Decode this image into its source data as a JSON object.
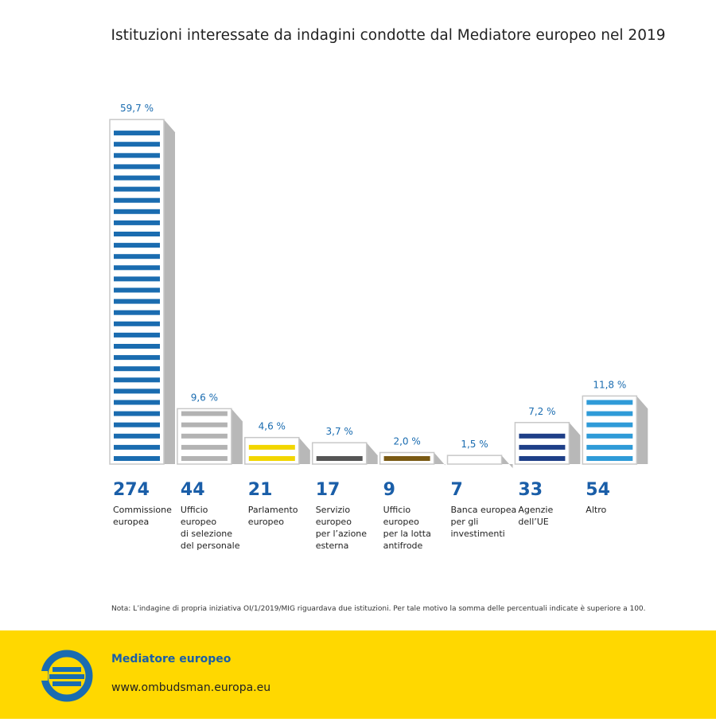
{
  "chart_data": {
    "type": "bar",
    "title": "Istituzioni interessate da indagini condotte dal Mediatore europeo nel 2019",
    "categories": [
      [
        "Commissione",
        "europea"
      ],
      [
        "Ufficio",
        "europeo",
        "di selezione",
        "del personale"
      ],
      [
        "Parlamento",
        "europeo"
      ],
      [
        "Servizio",
        "europeo",
        "per l’azione",
        "esterna"
      ],
      [
        "Ufficio",
        "europeo",
        "per la lotta",
        "antifrode"
      ],
      [
        "Banca europea",
        "per gli",
        "investimenti"
      ],
      [
        "Agenzie",
        "dell’UE"
      ],
      [
        "Altro"
      ]
    ],
    "values": [
      59.7,
      9.6,
      4.6,
      3.7,
      2.0,
      1.5,
      7.2,
      11.8
    ],
    "value_labels": [
      "59,7 %",
      "9,6 %",
      "4,6 %",
      "3,7 %",
      "2,0 %",
      "1,5 %",
      "7,2 %",
      "11,8 %"
    ],
    "counts": [
      274,
      44,
      21,
      17,
      9,
      7,
      33,
      54
    ],
    "colors": [
      "#1a6cb0",
      "#b3b3b3",
      "#f2d600",
      "#555555",
      "#7a5a14",
      "#f0a535",
      "#1e3f88",
      "#2f9bd8"
    ]
  },
  "note": "Nota: L’indagine di propria iniziativa OI/1/2019/MIG riguardava due istituzioni. Per tale motivo la somma delle percentuali indicate è superiore a 100.",
  "footer": {
    "name": "Mediatore europeo",
    "url": "www.ombudsman.europa.eu"
  }
}
